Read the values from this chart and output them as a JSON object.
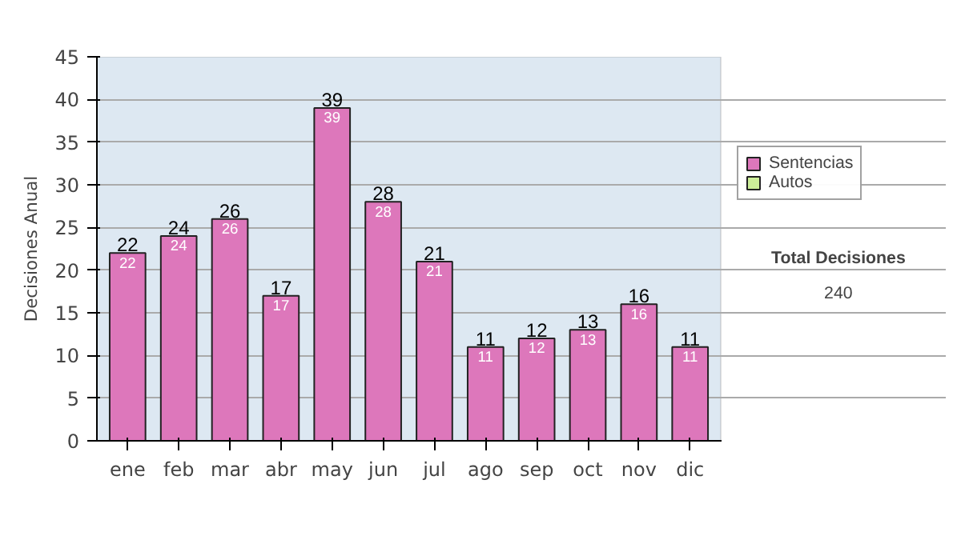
{
  "chart_data": {
    "type": "bar",
    "stacked": true,
    "ylabel": "Decisiones Anual",
    "categories": [
      "ene",
      "feb",
      "mar",
      "abr",
      "may",
      "jun",
      "jul",
      "ago",
      "sep",
      "oct",
      "nov",
      "dic"
    ],
    "series": [
      {
        "name": "Sentencias",
        "color": "#dd77bb",
        "values": [
          22,
          24,
          26,
          17,
          39,
          28,
          21,
          11,
          12,
          13,
          16,
          11
        ]
      },
      {
        "name": "Autos",
        "color": "#ccee99",
        "values": [
          null,
          null,
          null,
          null,
          null,
          null,
          null,
          null,
          null,
          null,
          null,
          null
        ]
      }
    ],
    "totals": [
      "22",
      "24",
      "26",
      "17",
      "39",
      "28",
      "21",
      "11",
      "12",
      "13",
      "16",
      "11"
    ],
    "data_labels": true,
    "ylim": [
      0,
      45
    ],
    "yticks": [
      0,
      5,
      10,
      15,
      20,
      25,
      30,
      35,
      40,
      45
    ],
    "grid": "y",
    "legend": "right",
    "annotations": [
      "Total Decisiones",
      "240"
    ]
  }
}
